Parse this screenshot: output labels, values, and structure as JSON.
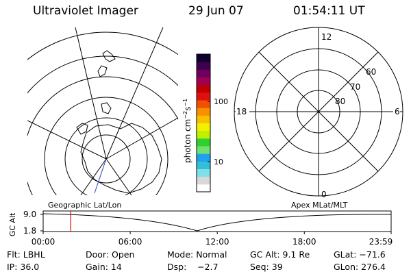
{
  "header": {
    "instrument": "Ultraviolet Imager",
    "date": "29 Jun 07",
    "time": "01:54:11 UT"
  },
  "colorbar": {
    "label_base": "photon cm",
    "label_exp1": "−2",
    "label_mid": "s",
    "label_exp2": "−1",
    "tick_100": "100",
    "tick_10": "10",
    "colors": [
      "#ffffff",
      "#d8d8d8",
      "#80e0e8",
      "#30c0d8",
      "#20a0f0",
      "#70e070",
      "#30d030",
      "#c0f000",
      "#f0f000",
      "#f8c000",
      "#f89000",
      "#f05000",
      "#e01010",
      "#c00000",
      "#a00050",
      "#700060",
      "#400050",
      "#100030"
    ]
  },
  "polar_plot": {
    "labels": {
      "top": "12",
      "bottom": "0",
      "left": "18",
      "right": "6",
      "lat60": "60",
      "lat70": "70",
      "lat80": "80"
    }
  },
  "timeline": {
    "ylabel": "GC Alt",
    "ymax": "9.0",
    "ymin": "1.8",
    "left_caption": "Geographic Lat/Lon",
    "right_caption": "Apex MLat/MLT",
    "x_ticks": [
      "00:00",
      "06:00",
      "12:00",
      "18:00",
      "23:59"
    ],
    "marker_time": "01:54",
    "marker_color": "#e00000"
  },
  "footer": {
    "flt": "Flt: LBHL",
    "door": "Door: Open",
    "mode": "Mode: Normal",
    "gc_alt": "GC Alt: 9.1 Re",
    "glat": "GLat: −71.6",
    "ip": "IP: 36.0",
    "gain": "Gain: 14",
    "dsp": "Dsp:    −2.7",
    "seq": "Seq: 39",
    "glon": "GLon: 276.4"
  }
}
